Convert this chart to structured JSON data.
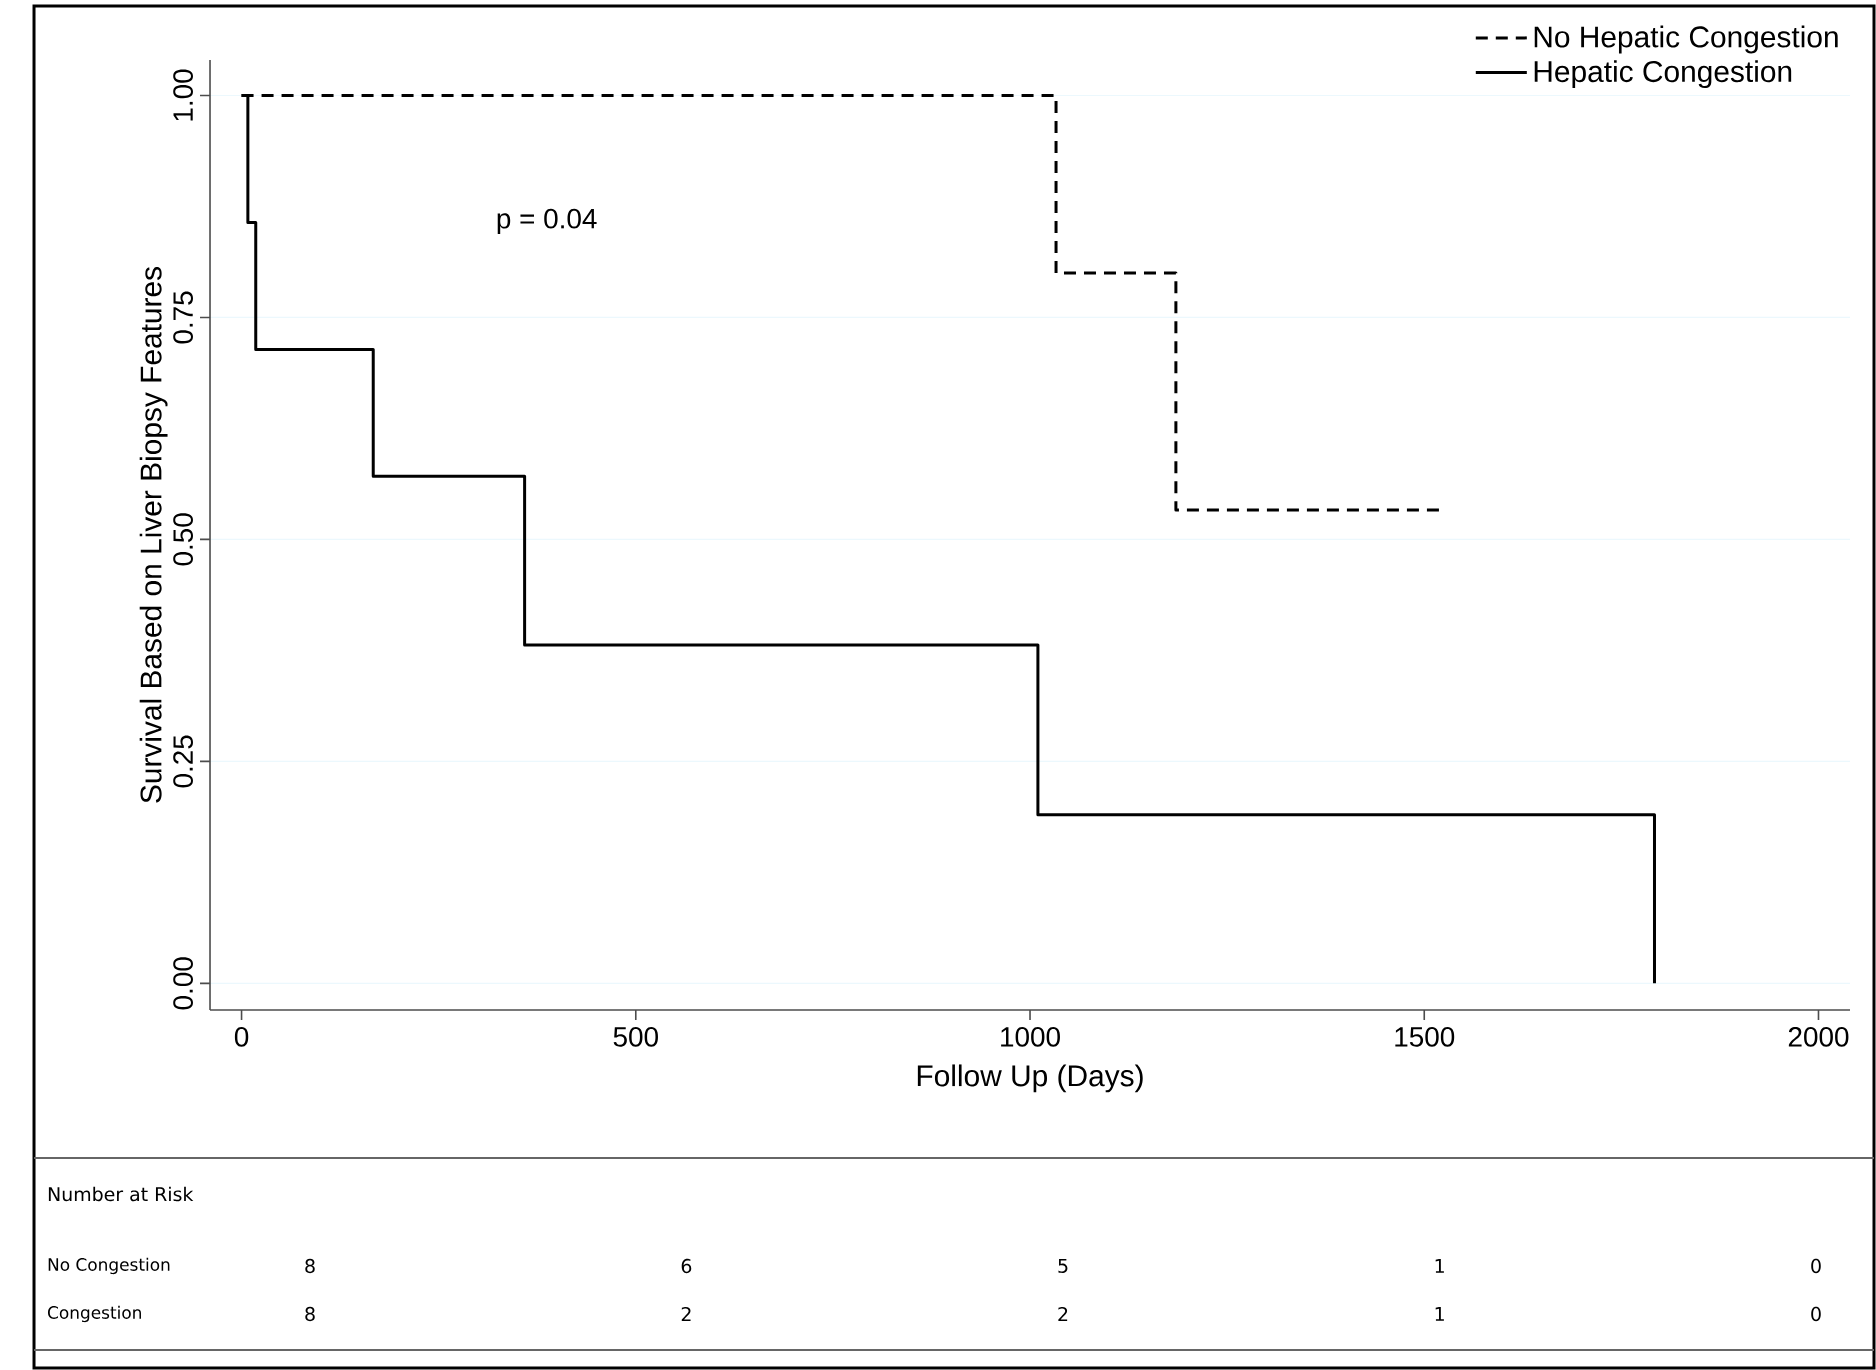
{
  "chart_data": {
    "type": "step",
    "xlabel": "Follow Up (Days)",
    "ylabel": "Survival Based on Liver Biopsy Features",
    "xlim": [
      -40,
      2040
    ],
    "ylim": [
      -0.03,
      1.04
    ],
    "xticks": [
      0,
      500,
      1000,
      1500,
      2000
    ],
    "yticks": [
      {
        "value": 0,
        "label": "0.00"
      },
      {
        "value": 0.25,
        "label": "0.25"
      },
      {
        "value": 0.5,
        "label": "0.50"
      },
      {
        "value": 0.75,
        "label": "0.75"
      },
      {
        "value": 1,
        "label": "1.00"
      }
    ],
    "grid": "y",
    "legend": "top right",
    "series": [
      {
        "name": "No Hepatic Congestion",
        "color": "#000000",
        "line_style": "dashed",
        "x": [
          0,
          1033,
          1185,
          1524
        ],
        "values": [
          1,
          0.8,
          0.533,
          0.533
        ]
      },
      {
        "name": "Hepatic Congestion",
        "color": "#000000",
        "line_style": "solid",
        "x": [
          0,
          8,
          18,
          167,
          359,
          1010,
          1792
        ],
        "values": [
          1,
          0.857,
          0.714,
          0.571,
          0.381,
          0.19,
          0
        ]
      }
    ],
    "annotations": [
      "p = 0.04",
      "Number at Risk",
      "No Congestion",
      "Congestion",
      "8",
      "6",
      "5",
      "1",
      "0",
      "8",
      "2",
      "2",
      "1",
      "0"
    ]
  }
}
